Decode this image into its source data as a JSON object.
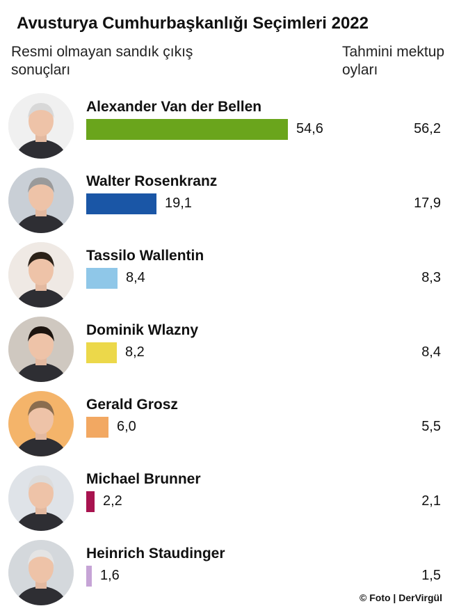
{
  "chart_data": {
    "type": "bar",
    "title": "Avusturya Cumhurbaşkanlığı Seçimleri 2022",
    "subtitle_left": "Resmi olmayan sandık çıkış sonuçları",
    "subtitle_right": "Tahmini mektup oyları",
    "categories": [
      "Alexander Van der Bellen",
      "Walter Rosenkranz",
      "Tassilo Wallentin",
      "Dominik Wlazny",
      "Gerald Grosz",
      "Michael Brunner",
      "Heinrich Staudinger"
    ],
    "series": [
      {
        "name": "Resmi olmayan sandık çıkış sonuçları",
        "values": [
          54.6,
          19.1,
          8.4,
          8.2,
          6.0,
          2.2,
          1.6
        ],
        "labels": [
          "54,6",
          "19,1",
          "8,4",
          "8,2",
          "6,0",
          "2,2",
          "1,6"
        ],
        "colors": [
          "#6aa51c",
          "#1a56a6",
          "#8fc7e8",
          "#ecd84a",
          "#f2a862",
          "#a8134f",
          "#c6a4d6"
        ]
      },
      {
        "name": "Tahmini mektup oyları",
        "values": [
          56.2,
          17.9,
          8.3,
          8.4,
          5.5,
          2.1,
          1.5
        ],
        "labels": [
          "56,2",
          "17,9",
          "8,3",
          "8,4",
          "5,5",
          "2,1",
          "1,5"
        ]
      }
    ],
    "ylim": [
      0,
      60
    ]
  },
  "credit": "© Foto | DerVirgül"
}
